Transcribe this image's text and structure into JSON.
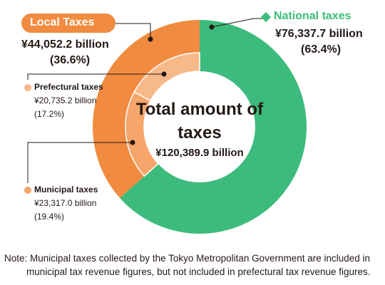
{
  "chart_data": {
    "type": "pie",
    "title": "Total amount of taxes",
    "total_label": "¥120,389.9 billion",
    "outer_ring": [
      {
        "name": "National taxes",
        "value": 76337.7,
        "value_label": "¥76,337.7 billion",
        "percent": 63.4,
        "percent_label": "(63.4%)",
        "color": "#3dbb7d"
      },
      {
        "name": "Local Taxes",
        "value": 44052.2,
        "value_label": "¥44,052.2 billion",
        "percent": 36.6,
        "percent_label": "(36.6%)",
        "color": "#f08b3f"
      }
    ],
    "inner_ring": [
      {
        "name": "Prefectural taxes",
        "value": 20735.2,
        "value_label": "¥20,735.2 billion",
        "percent": 17.2,
        "percent_label": "(17.2%)",
        "color": "#f8b98a"
      },
      {
        "name": "Municipal taxes",
        "value": 23317.0,
        "value_label": "¥23,317.0 billion",
        "percent": 19.4,
        "percent_label": "(19.4%)",
        "color": "#f6a56b"
      }
    ]
  },
  "note": {
    "line1": "Note: Municipal taxes collected by the Tokyo Metropolitan Government are included in",
    "line2": "municipal tax revenue figures, but not included in prefectural tax revenue figures."
  },
  "colors": {
    "national": "#3dbb7d",
    "local": "#f08b3f",
    "prefectural": "#f8b98a",
    "municipal": "#f6a56b",
    "label_text": "#231815",
    "national_text": "#3dbb7d"
  }
}
